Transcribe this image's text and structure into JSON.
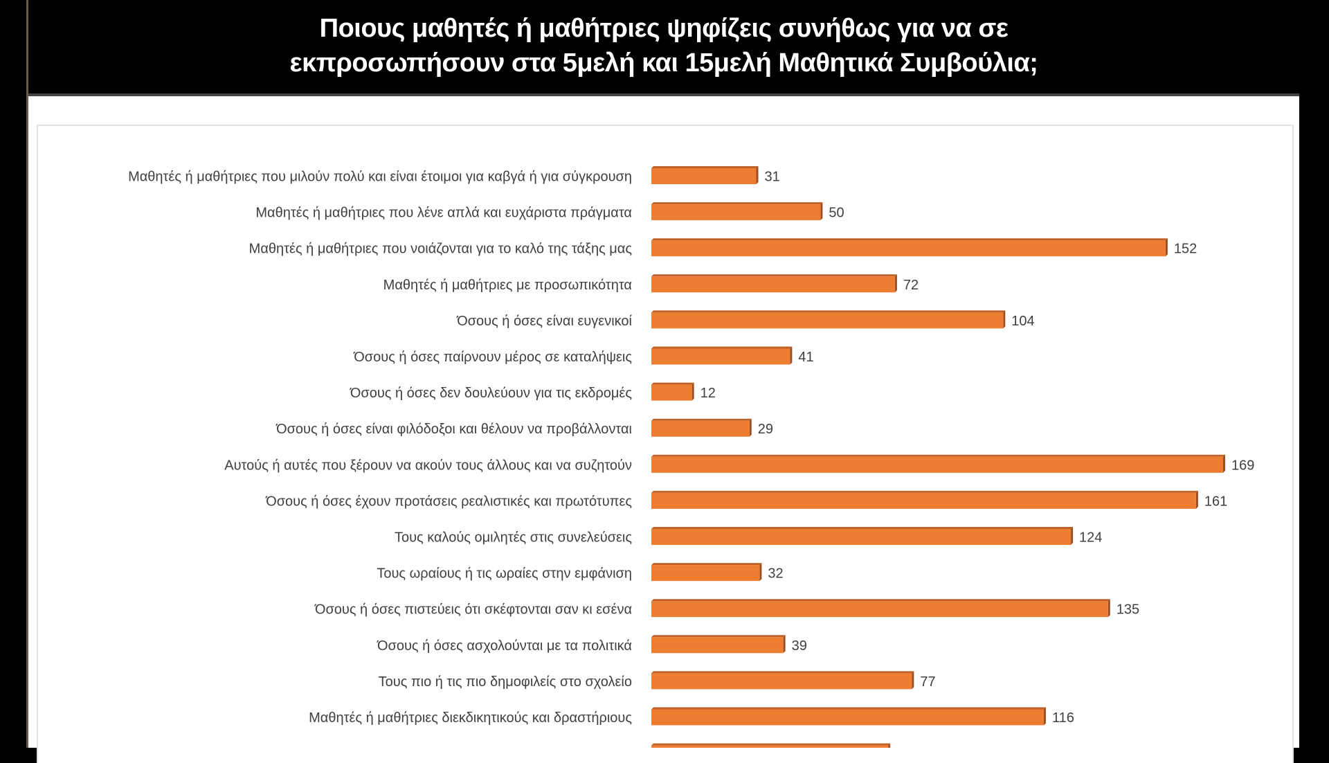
{
  "title_lines": [
    "Ποιους μαθητές ή μαθήτριες ψηφίζεις συνήθως για να σε",
    "εκπροσωπήσουν στα 5μελή και 15μελή Μαθητικά Συμβούλια;"
  ],
  "chart_data": {
    "type": "bar",
    "orientation": "horizontal",
    "title": "Ποιους μαθητές ή μαθήτριες ψηφίζεις συνήθως για να σε εκπροσωπήσουν στα 5μελή και 15μελή Μαθητικά Συμβούλια;",
    "xlabel": "",
    "ylabel": "",
    "xlim": [
      0,
      169
    ],
    "grid": false,
    "legend": "none",
    "bar_color": "#ED7D31",
    "categories": [
      "Μαθητές ή μαθήτριες που μιλούν πολύ και είναι έτοιμοι για καβγά ή για σύγκρουση",
      "Μαθητές ή μαθήτριες που λένε απλά και ευχάριστα πράγματα",
      "Μαθητές ή μαθήτριες που νοιάζονται για το καλό της τάξης μας",
      "Μαθητές ή μαθήτριες με προσωπικότητα",
      "Όσους ή όσες είναι ευγενικοί",
      "Όσους ή όσες παίρνουν μέρος σε καταλήψεις",
      "Όσους ή όσες δεν δουλεύουν για τις εκδρομές",
      "Όσους ή όσες είναι φιλόδοξοι και θέλουν να προβάλλονται",
      "Αυτούς ή αυτές που ξέρουν να ακούν τους άλλους και να συζητούν",
      "Όσους ή όσες έχουν προτάσεις ρεαλιστικές και πρωτότυπες",
      "Τους καλούς ομιλητές στις συνελεύσεις",
      "Τους ωραίους ή τις ωραίες στην εμφάνιση",
      "Όσους ή όσες πιστεύεις ότι σκέφτονται σαν κι εσένα",
      "Όσους ή όσες ασχολούνται με τα πολιτικά",
      "Τους πιο ή τις πιο δημοφιλείς στο σχολείο",
      "Μαθητές ή μαθήτριες διεκδικητικούς και δραστήριους"
    ],
    "values": [
      31,
      50,
      152,
      72,
      104,
      41,
      12,
      29,
      169,
      161,
      124,
      32,
      135,
      39,
      77,
      116
    ],
    "partial_bar_value_estimate": 70
  }
}
